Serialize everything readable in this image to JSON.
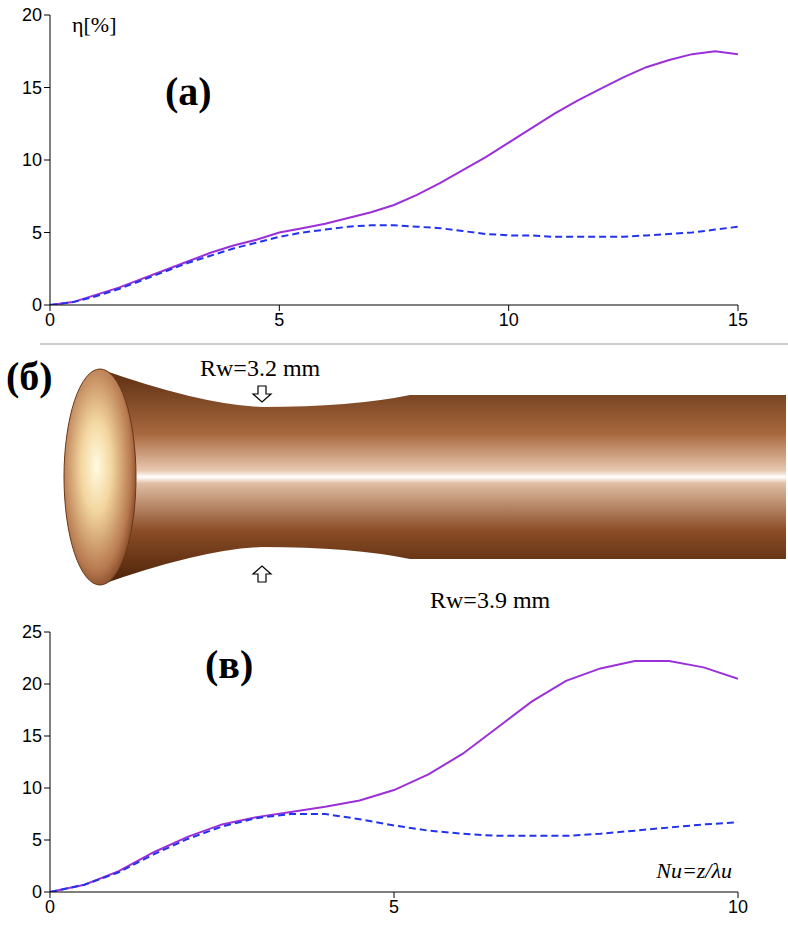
{
  "chart_data": [
    {
      "type": "line",
      "title": "(a)",
      "ylabel": "η[%]",
      "x": [
        0,
        0.5,
        1,
        1.5,
        2,
        2.5,
        3,
        3.5,
        4,
        4.5,
        5,
        5.5,
        6,
        6.5,
        7,
        7.5,
        8,
        8.5,
        9,
        9.5,
        10,
        10.5,
        11,
        11.5,
        12,
        12.5,
        13,
        13.5,
        14,
        14.5,
        15
      ],
      "series": [
        {
          "color": "#9b30d9",
          "line_style": "solid",
          "values": [
            0,
            0.2,
            0.7,
            1.2,
            1.8,
            2.4,
            3.0,
            3.6,
            4.1,
            4.5,
            5.0,
            5.3,
            5.6,
            6.0,
            6.4,
            6.9,
            7.6,
            8.4,
            9.3,
            10.2,
            11.2,
            12.2,
            13.2,
            14.1,
            14.9,
            15.7,
            16.4,
            16.9,
            17.3,
            17.5,
            17.3
          ]
        },
        {
          "color": "#2233ee",
          "line_style": "dashed",
          "values": [
            0,
            0.2,
            0.6,
            1.1,
            1.7,
            2.3,
            2.9,
            3.4,
            3.9,
            4.3,
            4.7,
            5.0,
            5.2,
            5.4,
            5.5,
            5.5,
            5.4,
            5.3,
            5.1,
            4.9,
            4.8,
            4.8,
            4.7,
            4.7,
            4.7,
            4.7,
            4.8,
            4.9,
            5.0,
            5.2,
            5.4
          ]
        }
      ],
      "xlim": [
        0,
        15
      ],
      "xticks": [
        0,
        5,
        10,
        15
      ],
      "ylim": [
        0,
        20
      ],
      "yticks": [
        0,
        5,
        10,
        15,
        20
      ],
      "grid": false
    },
    {
      "type": "line",
      "title": "(в)",
      "xlabel": "Nu=z/λu",
      "x": [
        0,
        0.5,
        1,
        1.5,
        2,
        2.5,
        3,
        3.5,
        4,
        4.5,
        5,
        5.5,
        6,
        6.5,
        7,
        7.5,
        8,
        8.5,
        9,
        9.5,
        10
      ],
      "series": [
        {
          "color": "#9b30d9",
          "line_style": "solid",
          "values": [
            0,
            0.7,
            2.0,
            3.8,
            5.3,
            6.5,
            7.2,
            7.7,
            8.2,
            8.8,
            9.8,
            11.3,
            13.3,
            15.8,
            18.3,
            20.3,
            21.5,
            22.2,
            22.2,
            21.6,
            20.5
          ]
        },
        {
          "color": "#2233ee",
          "line_style": "dashed",
          "values": [
            0,
            0.7,
            1.9,
            3.6,
            5.1,
            6.3,
            7.1,
            7.5,
            7.5,
            7.0,
            6.4,
            5.9,
            5.6,
            5.4,
            5.4,
            5.4,
            5.6,
            5.9,
            6.2,
            6.5,
            6.7
          ]
        }
      ],
      "xlim": [
        0,
        10
      ],
      "xticks": [
        0,
        5,
        10
      ],
      "ylim": [
        0,
        25
      ],
      "yticks": [
        0,
        5,
        10,
        15,
        20,
        25
      ],
      "grid": false
    }
  ],
  "diagram": {
    "label": "(б)",
    "top_label": "Rw=3.2 mm",
    "bottom_label": "Rw=3.9 mm"
  }
}
